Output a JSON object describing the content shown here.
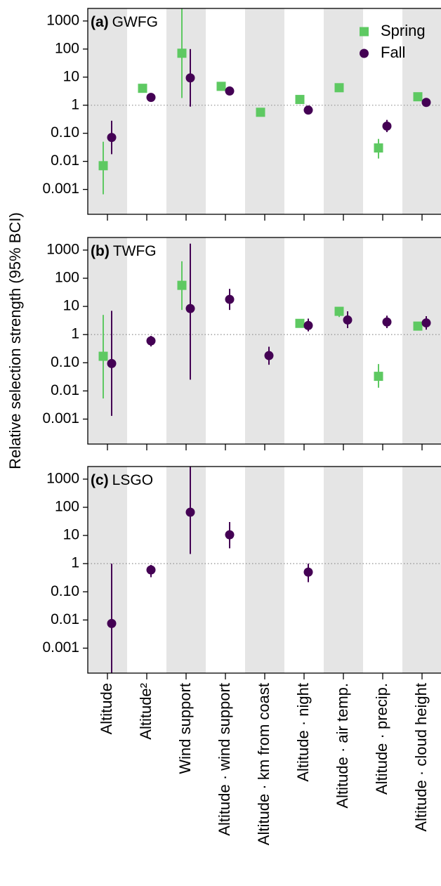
{
  "chart_data": [
    {
      "type": "point",
      "label": "(a)",
      "title": "GWFG",
      "log": true,
      "ylim": [
        0.00013,
        2800
      ],
      "hline": 1,
      "legend": "upper right",
      "yticks": [
        1000,
        100,
        10,
        1,
        {
          "value": 0.1,
          "label": "0.10"
        },
        0.01,
        0.001
      ],
      "series": [
        {
          "name": "Spring",
          "color": "#5ec962",
          "marker": "square",
          "values": [
            0.007,
            4,
            71,
            4.7,
            0.56,
            1.6,
            4.2,
            0.03,
            2.0
          ],
          "lower": [
            0.00067,
            null,
            1.8,
            null,
            null,
            null,
            null,
            0.0126,
            null
          ],
          "upper": [
            0.05,
            null,
            3000,
            null,
            null,
            null,
            null,
            0.063,
            null
          ]
        },
        {
          "name": "Fall",
          "color": "#440154",
          "marker": "circle",
          "values": [
            0.071,
            1.9,
            9.4,
            3.2,
            null,
            0.67,
            null,
            0.18,
            1.26
          ],
          "lower": [
            0.018,
            null,
            0.89,
            null,
            null,
            null,
            null,
            0.11,
            null
          ],
          "upper": [
            0.28,
            null,
            100,
            null,
            null,
            null,
            null,
            0.3,
            null
          ]
        }
      ]
    },
    {
      "type": "point",
      "label": "(b)",
      "title": "TWFG",
      "log": true,
      "ylim": [
        0.00013,
        2800
      ],
      "hline": 1,
      "ylabel": "Relative selection strength (95% BCI)",
      "yticks": [
        1000,
        100,
        10,
        1,
        {
          "value": 0.1,
          "label": "0.10"
        },
        0.01,
        0.001
      ],
      "series": [
        {
          "name": "Spring",
          "color": "#5ec962",
          "marker": "square",
          "values": [
            0.17,
            null,
            56,
            null,
            null,
            2.5,
            6.7,
            0.033,
            2.0
          ],
          "lower": [
            0.0054,
            null,
            7.5,
            null,
            null,
            null,
            4.2,
            0.013,
            null
          ],
          "upper": [
            5,
            null,
            400,
            null,
            null,
            null,
            9.5,
            0.09,
            null
          ]
        },
        {
          "name": "Fall",
          "color": "#440154",
          "marker": "circle",
          "values": [
            0.094,
            0.6,
            8.4,
            17.8,
            0.18,
            2.1,
            3.3,
            2.8,
            2.6
          ],
          "lower": [
            0.0013,
            0.38,
            0.025,
            7.5,
            0.085,
            1.3,
            1.7,
            1.7,
            1.5
          ],
          "upper": [
            7,
            0.9,
            1700,
            42,
            0.37,
            3.7,
            6.7,
            4.7,
            4.5
          ]
        }
      ]
    },
    {
      "type": "point",
      "label": "(c)",
      "title": "LSGO",
      "log": true,
      "ylim": [
        0.00013,
        2800
      ],
      "hline": 1,
      "yticks": [
        1000,
        100,
        10,
        1,
        {
          "value": 0.1,
          "label": "0.10"
        },
        0.01,
        0.001
      ],
      "categories": [
        "Altitude",
        "Altitude²",
        "Wind support",
        "Altitude · wind support",
        "Altitude · km from coast",
        "Altitude · night",
        "Altitude · air temp.",
        "Altitude · precip.",
        "Altitude · cloud height"
      ],
      "series": [
        {
          "name": "Fall",
          "color": "#440154",
          "marker": "circle",
          "values": [
            0.0075,
            0.6,
            67,
            10.6,
            null,
            0.5,
            null,
            null,
            null
          ],
          "lower": [
            0.0001,
            0.33,
            2.2,
            3.5,
            null,
            0.22,
            null,
            null,
            null
          ],
          "upper": [
            1,
            0.9,
            3000,
            30,
            null,
            1,
            null,
            null,
            null
          ]
        }
      ]
    }
  ]
}
